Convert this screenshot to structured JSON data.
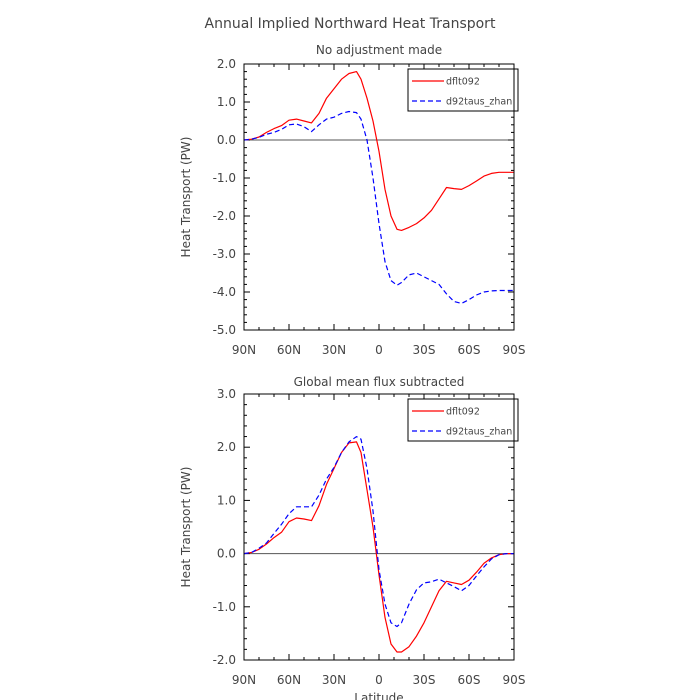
{
  "page_title": "Annual Implied Northward Heat Transport",
  "chart_data": [
    {
      "type": "line",
      "title": "No adjustment made",
      "xlabel": "",
      "ylabel": "Heat Transport (PW)",
      "x_ticks": [
        "90N",
        "60N",
        "30N",
        "0",
        "30S",
        "60S",
        "90S"
      ],
      "x_tick_values": [
        90,
        60,
        30,
        0,
        -30,
        -60,
        -90
      ],
      "xlim": [
        90,
        -90
      ],
      "ylim": [
        -5.0,
        2.0
      ],
      "y_ticks": [
        2.0,
        1.0,
        0.0,
        -1.0,
        -2.0,
        -3.0,
        -4.0,
        -5.0
      ],
      "y_tick_labels": [
        "2.0",
        "1.0",
        "0.0",
        "-1.0",
        "-2.0",
        "-3.0",
        "-4.0",
        "-5.0"
      ],
      "legend_position": "top-right",
      "series": [
        {
          "name": "dflt092",
          "color": "#ff0000",
          "dash": "solid",
          "x": [
            90,
            85,
            80,
            75,
            70,
            65,
            60,
            55,
            50,
            45,
            40,
            35,
            30,
            25,
            20,
            15,
            12,
            8,
            4,
            0,
            -4,
            -8,
            -12,
            -15,
            -20,
            -25,
            -30,
            -35,
            -40,
            -45,
            -50,
            -55,
            -60,
            -65,
            -70,
            -75,
            -80,
            -85,
            -90
          ],
          "y": [
            0.0,
            0.02,
            0.08,
            0.2,
            0.3,
            0.38,
            0.52,
            0.55,
            0.5,
            0.45,
            0.7,
            1.1,
            1.35,
            1.6,
            1.75,
            1.8,
            1.6,
            1.1,
            0.5,
            -0.3,
            -1.3,
            -2.0,
            -2.35,
            -2.38,
            -2.3,
            -2.2,
            -2.05,
            -1.85,
            -1.55,
            -1.25,
            -1.28,
            -1.3,
            -1.2,
            -1.08,
            -0.95,
            -0.88,
            -0.85,
            -0.85,
            -0.85
          ]
        },
        {
          "name": "d92taus_zhan",
          "color": "#0000ff",
          "dash": "dashed",
          "x": [
            90,
            85,
            80,
            75,
            70,
            65,
            60,
            55,
            50,
            45,
            40,
            35,
            30,
            25,
            20,
            15,
            12,
            8,
            4,
            0,
            -4,
            -8,
            -12,
            -15,
            -20,
            -25,
            -30,
            -35,
            -40,
            -45,
            -50,
            -55,
            -60,
            -65,
            -70,
            -75,
            -80,
            -85,
            -90
          ],
          "y": [
            0.0,
            0.02,
            0.07,
            0.15,
            0.2,
            0.28,
            0.4,
            0.42,
            0.35,
            0.22,
            0.4,
            0.55,
            0.6,
            0.7,
            0.75,
            0.72,
            0.55,
            0.0,
            -1.0,
            -2.2,
            -3.2,
            -3.7,
            -3.82,
            -3.75,
            -3.55,
            -3.5,
            -3.6,
            -3.7,
            -3.8,
            -4.05,
            -4.25,
            -4.3,
            -4.2,
            -4.08,
            -4.0,
            -3.97,
            -3.96,
            -3.96,
            -3.96
          ]
        }
      ]
    },
    {
      "type": "line",
      "title": "Global mean flux subtracted",
      "xlabel": "Latitude",
      "ylabel": "Heat Transport (PW)",
      "x_ticks": [
        "90N",
        "60N",
        "30N",
        "0",
        "30S",
        "60S",
        "90S"
      ],
      "x_tick_values": [
        90,
        60,
        30,
        0,
        -30,
        -60,
        -90
      ],
      "xlim": [
        90,
        -90
      ],
      "ylim": [
        -2.0,
        3.0
      ],
      "y_ticks": [
        3.0,
        2.0,
        1.0,
        0.0,
        -1.0,
        -2.0
      ],
      "y_tick_labels": [
        "3.0",
        "2.0",
        "1.0",
        "0.0",
        "-1.0",
        "-2.0"
      ],
      "legend_position": "top-right",
      "series": [
        {
          "name": "dflt092",
          "color": "#ff0000",
          "dash": "solid",
          "x": [
            90,
            85,
            80,
            75,
            70,
            65,
            60,
            55,
            50,
            45,
            40,
            35,
            30,
            25,
            20,
            15,
            12,
            8,
            4,
            0,
            -4,
            -8,
            -12,
            -15,
            -20,
            -25,
            -30,
            -35,
            -40,
            -45,
            -50,
            -55,
            -60,
            -65,
            -70,
            -75,
            -80,
            -85,
            -90
          ],
          "y": [
            0.0,
            0.02,
            0.08,
            0.18,
            0.3,
            0.4,
            0.6,
            0.67,
            0.65,
            0.62,
            0.9,
            1.3,
            1.6,
            1.9,
            2.08,
            2.1,
            1.9,
            1.2,
            0.5,
            -0.4,
            -1.2,
            -1.7,
            -1.85,
            -1.85,
            -1.75,
            -1.55,
            -1.3,
            -1.0,
            -0.7,
            -0.52,
            -0.55,
            -0.58,
            -0.5,
            -0.35,
            -0.18,
            -0.08,
            -0.02,
            0.0,
            0.0
          ]
        },
        {
          "name": "d92taus_zhan",
          "color": "#0000ff",
          "dash": "dashed",
          "x": [
            90,
            85,
            80,
            75,
            70,
            65,
            60,
            55,
            50,
            45,
            40,
            35,
            30,
            25,
            20,
            15,
            12,
            8,
            4,
            0,
            -4,
            -8,
            -12,
            -15,
            -20,
            -25,
            -30,
            -35,
            -40,
            -45,
            -50,
            -55,
            -60,
            -65,
            -70,
            -75,
            -80,
            -85,
            -90
          ],
          "y": [
            0.0,
            0.02,
            0.1,
            0.2,
            0.38,
            0.55,
            0.75,
            0.88,
            0.88,
            0.88,
            1.1,
            1.4,
            1.62,
            1.9,
            2.1,
            2.2,
            2.15,
            1.6,
            0.8,
            -0.3,
            -0.95,
            -1.3,
            -1.37,
            -1.3,
            -0.95,
            -0.68,
            -0.55,
            -0.53,
            -0.48,
            -0.55,
            -0.62,
            -0.7,
            -0.6,
            -0.42,
            -0.25,
            -0.1,
            -0.02,
            0.0,
            0.0
          ]
        }
      ]
    }
  ]
}
